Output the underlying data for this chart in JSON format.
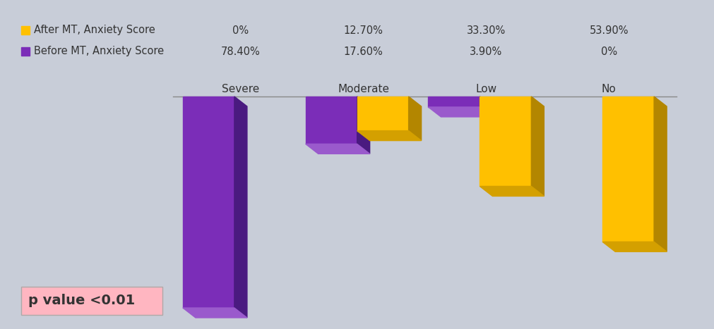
{
  "categories": [
    "Severe",
    "Moderate",
    "Low",
    "No"
  ],
  "before_mt": [
    78.4,
    17.6,
    3.9,
    0.0
  ],
  "after_mt": [
    0.0,
    12.7,
    33.3,
    53.9
  ],
  "before_color_face": "#7B2DB8",
  "before_color_dark": "#4A1A80",
  "before_color_top": "#9A5ACC",
  "after_color_face": "#FFC000",
  "after_color_dark": "#B38600",
  "after_color_top": "#D4A000",
  "bg_color": "#C8CDD8",
  "pvalue_bg": "#FFB6C1",
  "pvalue_text": "p value <0.01",
  "legend_before": "Before MT, Anxiety Score",
  "legend_after": "After MT, Anxiety Score",
  "before_labels": [
    "78.40%",
    "17.60%",
    "3.90%",
    "0%"
  ],
  "after_labels": [
    "0%",
    "12.70%",
    "33.30%",
    "53.90%"
  ],
  "max_val": 78.4
}
